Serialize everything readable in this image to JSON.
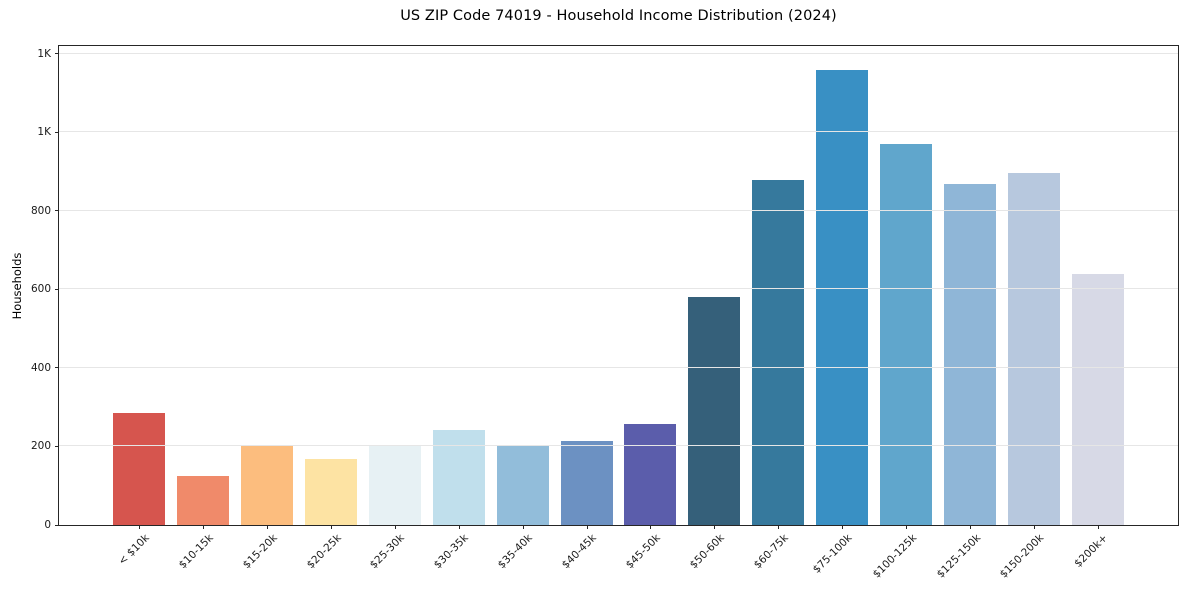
{
  "figure": {
    "background": "#ffffff"
  },
  "chart_data": {
    "type": "bar",
    "title": "US ZIP Code 74019 - Household Income Distribution (2024)",
    "xlabel": "",
    "ylabel": "Households",
    "ylim": [
      0,
      1220
    ],
    "grid": "horizontal",
    "grid_color": "#e6e6e6",
    "axis_color": "#262626",
    "tick_text_color": "#1a1a1a",
    "legend": "none",
    "categories": [
      "< $10k",
      "$10-15k",
      "$15-20k",
      "$20-25k",
      "$25-30k",
      "$30-35k",
      "$35-40k",
      "$40-45k",
      "$45-50k",
      "$50-60k",
      "$60-75k",
      "$75-100k",
      "$100-125k",
      "$125-150k",
      "$150-200k",
      "$200k+"
    ],
    "values": [
      285,
      126,
      205,
      168,
      202,
      242,
      203,
      215,
      257,
      580,
      878,
      1160,
      970,
      868,
      897,
      640
    ],
    "bar_colors": [
      "#d6554e",
      "#f08a6a",
      "#fcbd7e",
      "#fde3a3",
      "#e7f1f4",
      "#c0dfec",
      "#92bdda",
      "#6c91c2",
      "#5b5dab",
      "#35607a",
      "#36799d",
      "#3990c4",
      "#60a6cc",
      "#8fb6d7",
      "#b7c8de",
      "#d7d9e6"
    ],
    "yticks": [
      {
        "value": 0,
        "label": "0"
      },
      {
        "value": 200,
        "label": "200"
      },
      {
        "value": 400,
        "label": "400"
      },
      {
        "value": 600,
        "label": "600"
      },
      {
        "value": 800,
        "label": "800"
      },
      {
        "value": 1000,
        "label": "1K"
      },
      {
        "value": 1200,
        "label": "1K"
      }
    ]
  }
}
